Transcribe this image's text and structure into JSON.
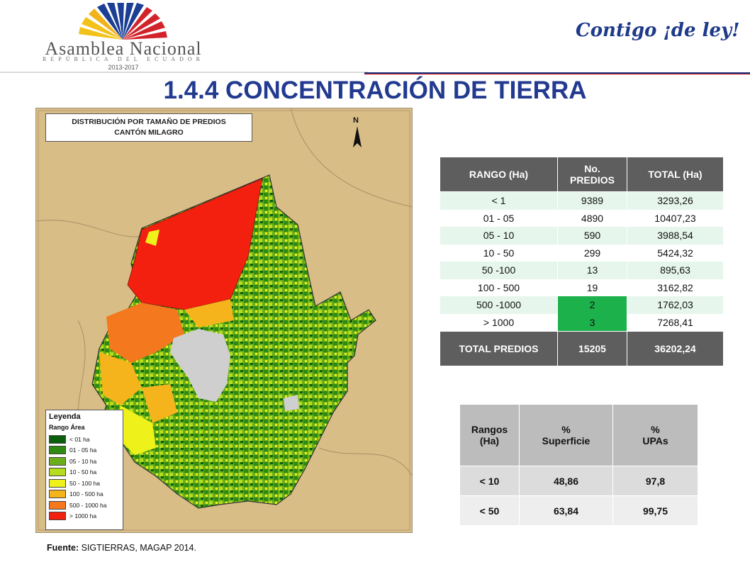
{
  "header": {
    "org_name": "Asamblea Nacional",
    "org_sub": "REPÚBLICA DEL ECUADOR",
    "period": "2013-2017",
    "slogan": "Contigo ¡de ley!",
    "colors": {
      "title": "#223a8f",
      "slogan": "#1e3a8a",
      "accent_red": "#c00000"
    }
  },
  "title": "1.4.4 CONCENTRACIÓN DE TIERRA",
  "map": {
    "title_line1": "DISTRIBUCIÓN POR TAMAÑO DE PREDIOS",
    "title_line2": "CANTÓN MILAGRO",
    "north_label": "N",
    "legend_title": "Leyenda",
    "legend_subtitle": "Rango Área",
    "legend_items": [
      {
        "label": "< 01 ha",
        "color": "#0b5e0b"
      },
      {
        "label": "01 - 05 ha",
        "color": "#2f8a12"
      },
      {
        "label": "05 - 10 ha",
        "color": "#6aae1c"
      },
      {
        "label": "10 - 50 ha",
        "color": "#b6dc1e"
      },
      {
        "label": "50 - 100 ha",
        "color": "#eef21a"
      },
      {
        "label": "100 - 500 ha",
        "color": "#f5b31c"
      },
      {
        "label": "500 - 1000 ha",
        "color": "#f4781e"
      },
      {
        "label": "> 1000 ha",
        "color": "#f4200f"
      }
    ]
  },
  "table1": {
    "headers": [
      "RANGO (Ha)",
      "No.\nPREDIOS",
      "TOTAL (Ha)"
    ],
    "rows": [
      {
        "rango": "< 1",
        "predios": "9389",
        "total": "3293,26"
      },
      {
        "rango": "01 - 05",
        "predios": "4890",
        "total": "10407,23"
      },
      {
        "rango": "05 - 10",
        "predios": "590",
        "total": "3988,54"
      },
      {
        "rango": "10 - 50",
        "predios": "299",
        "total": "5424,32"
      },
      {
        "rango": "50 -100",
        "predios": "13",
        "total": "895,63"
      },
      {
        "rango": "100 - 500",
        "predios": "19",
        "total": "3162,82"
      },
      {
        "rango": "500 -1000",
        "predios": "2",
        "total": "1762,03"
      },
      {
        "rango": "> 1000",
        "predios": "3",
        "total": "7268,41"
      }
    ],
    "total_row": {
      "label": "TOTAL PREDIOS",
      "predios": "15205",
      "total": "36202,24"
    },
    "highlight_color": "#1db14c"
  },
  "table2": {
    "headers": [
      "Rangos\n(Ha)",
      "%\nSuperficie",
      "%\nUPAs"
    ],
    "rows": [
      {
        "rango": "< 10",
        "superficie": "48,86",
        "upas": "97,8"
      },
      {
        "rango": "< 50",
        "superficie": "63,84",
        "upas": "99,75"
      }
    ]
  },
  "footer": {
    "label": "Fuente:",
    "text": " SIGTIERRAS,  MAGAP 2014."
  }
}
